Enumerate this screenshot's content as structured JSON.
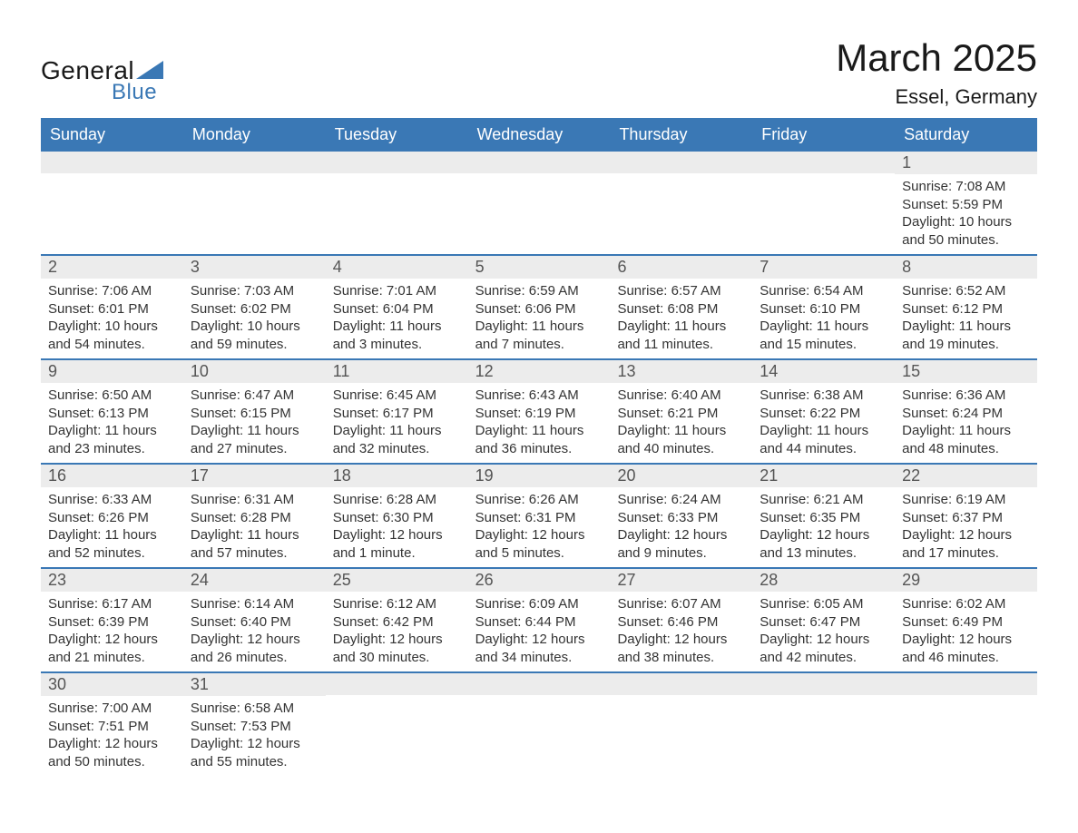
{
  "brand": {
    "text_general": "General",
    "text_blue": "Blue",
    "triangle_color": "#3a78b5"
  },
  "header": {
    "month_title": "March 2025",
    "location": "Essel, Germany"
  },
  "calendar": {
    "type": "calendar",
    "header_bg": "#3a78b5",
    "header_fg": "#ffffff",
    "daynum_bg": "#ececec",
    "row_border_color": "#3a78b5",
    "text_color": "#333333",
    "day_labels": [
      "Sunday",
      "Monday",
      "Tuesday",
      "Wednesday",
      "Thursday",
      "Friday",
      "Saturday"
    ],
    "weeks": [
      [
        {
          "day": "",
          "sunrise": "",
          "sunset": "",
          "daylight": ""
        },
        {
          "day": "",
          "sunrise": "",
          "sunset": "",
          "daylight": ""
        },
        {
          "day": "",
          "sunrise": "",
          "sunset": "",
          "daylight": ""
        },
        {
          "day": "",
          "sunrise": "",
          "sunset": "",
          "daylight": ""
        },
        {
          "day": "",
          "sunrise": "",
          "sunset": "",
          "daylight": ""
        },
        {
          "day": "",
          "sunrise": "",
          "sunset": "",
          "daylight": ""
        },
        {
          "day": "1",
          "sunrise": "Sunrise: 7:08 AM",
          "sunset": "Sunset: 5:59 PM",
          "daylight": "Daylight: 10 hours and 50 minutes."
        }
      ],
      [
        {
          "day": "2",
          "sunrise": "Sunrise: 7:06 AM",
          "sunset": "Sunset: 6:01 PM",
          "daylight": "Daylight: 10 hours and 54 minutes."
        },
        {
          "day": "3",
          "sunrise": "Sunrise: 7:03 AM",
          "sunset": "Sunset: 6:02 PM",
          "daylight": "Daylight: 10 hours and 59 minutes."
        },
        {
          "day": "4",
          "sunrise": "Sunrise: 7:01 AM",
          "sunset": "Sunset: 6:04 PM",
          "daylight": "Daylight: 11 hours and 3 minutes."
        },
        {
          "day": "5",
          "sunrise": "Sunrise: 6:59 AM",
          "sunset": "Sunset: 6:06 PM",
          "daylight": "Daylight: 11 hours and 7 minutes."
        },
        {
          "day": "6",
          "sunrise": "Sunrise: 6:57 AM",
          "sunset": "Sunset: 6:08 PM",
          "daylight": "Daylight: 11 hours and 11 minutes."
        },
        {
          "day": "7",
          "sunrise": "Sunrise: 6:54 AM",
          "sunset": "Sunset: 6:10 PM",
          "daylight": "Daylight: 11 hours and 15 minutes."
        },
        {
          "day": "8",
          "sunrise": "Sunrise: 6:52 AM",
          "sunset": "Sunset: 6:12 PM",
          "daylight": "Daylight: 11 hours and 19 minutes."
        }
      ],
      [
        {
          "day": "9",
          "sunrise": "Sunrise: 6:50 AM",
          "sunset": "Sunset: 6:13 PM",
          "daylight": "Daylight: 11 hours and 23 minutes."
        },
        {
          "day": "10",
          "sunrise": "Sunrise: 6:47 AM",
          "sunset": "Sunset: 6:15 PM",
          "daylight": "Daylight: 11 hours and 27 minutes."
        },
        {
          "day": "11",
          "sunrise": "Sunrise: 6:45 AM",
          "sunset": "Sunset: 6:17 PM",
          "daylight": "Daylight: 11 hours and 32 minutes."
        },
        {
          "day": "12",
          "sunrise": "Sunrise: 6:43 AM",
          "sunset": "Sunset: 6:19 PM",
          "daylight": "Daylight: 11 hours and 36 minutes."
        },
        {
          "day": "13",
          "sunrise": "Sunrise: 6:40 AM",
          "sunset": "Sunset: 6:21 PM",
          "daylight": "Daylight: 11 hours and 40 minutes."
        },
        {
          "day": "14",
          "sunrise": "Sunrise: 6:38 AM",
          "sunset": "Sunset: 6:22 PM",
          "daylight": "Daylight: 11 hours and 44 minutes."
        },
        {
          "day": "15",
          "sunrise": "Sunrise: 6:36 AM",
          "sunset": "Sunset: 6:24 PM",
          "daylight": "Daylight: 11 hours and 48 minutes."
        }
      ],
      [
        {
          "day": "16",
          "sunrise": "Sunrise: 6:33 AM",
          "sunset": "Sunset: 6:26 PM",
          "daylight": "Daylight: 11 hours and 52 minutes."
        },
        {
          "day": "17",
          "sunrise": "Sunrise: 6:31 AM",
          "sunset": "Sunset: 6:28 PM",
          "daylight": "Daylight: 11 hours and 57 minutes."
        },
        {
          "day": "18",
          "sunrise": "Sunrise: 6:28 AM",
          "sunset": "Sunset: 6:30 PM",
          "daylight": "Daylight: 12 hours and 1 minute."
        },
        {
          "day": "19",
          "sunrise": "Sunrise: 6:26 AM",
          "sunset": "Sunset: 6:31 PM",
          "daylight": "Daylight: 12 hours and 5 minutes."
        },
        {
          "day": "20",
          "sunrise": "Sunrise: 6:24 AM",
          "sunset": "Sunset: 6:33 PM",
          "daylight": "Daylight: 12 hours and 9 minutes."
        },
        {
          "day": "21",
          "sunrise": "Sunrise: 6:21 AM",
          "sunset": "Sunset: 6:35 PM",
          "daylight": "Daylight: 12 hours and 13 minutes."
        },
        {
          "day": "22",
          "sunrise": "Sunrise: 6:19 AM",
          "sunset": "Sunset: 6:37 PM",
          "daylight": "Daylight: 12 hours and 17 minutes."
        }
      ],
      [
        {
          "day": "23",
          "sunrise": "Sunrise: 6:17 AM",
          "sunset": "Sunset: 6:39 PM",
          "daylight": "Daylight: 12 hours and 21 minutes."
        },
        {
          "day": "24",
          "sunrise": "Sunrise: 6:14 AM",
          "sunset": "Sunset: 6:40 PM",
          "daylight": "Daylight: 12 hours and 26 minutes."
        },
        {
          "day": "25",
          "sunrise": "Sunrise: 6:12 AM",
          "sunset": "Sunset: 6:42 PM",
          "daylight": "Daylight: 12 hours and 30 minutes."
        },
        {
          "day": "26",
          "sunrise": "Sunrise: 6:09 AM",
          "sunset": "Sunset: 6:44 PM",
          "daylight": "Daylight: 12 hours and 34 minutes."
        },
        {
          "day": "27",
          "sunrise": "Sunrise: 6:07 AM",
          "sunset": "Sunset: 6:46 PM",
          "daylight": "Daylight: 12 hours and 38 minutes."
        },
        {
          "day": "28",
          "sunrise": "Sunrise: 6:05 AM",
          "sunset": "Sunset: 6:47 PM",
          "daylight": "Daylight: 12 hours and 42 minutes."
        },
        {
          "day": "29",
          "sunrise": "Sunrise: 6:02 AM",
          "sunset": "Sunset: 6:49 PM",
          "daylight": "Daylight: 12 hours and 46 minutes."
        }
      ],
      [
        {
          "day": "30",
          "sunrise": "Sunrise: 7:00 AM",
          "sunset": "Sunset: 7:51 PM",
          "daylight": "Daylight: 12 hours and 50 minutes."
        },
        {
          "day": "31",
          "sunrise": "Sunrise: 6:58 AM",
          "sunset": "Sunset: 7:53 PM",
          "daylight": "Daylight: 12 hours and 55 minutes."
        },
        {
          "day": "",
          "sunrise": "",
          "sunset": "",
          "daylight": ""
        },
        {
          "day": "",
          "sunrise": "",
          "sunset": "",
          "daylight": ""
        },
        {
          "day": "",
          "sunrise": "",
          "sunset": "",
          "daylight": ""
        },
        {
          "day": "",
          "sunrise": "",
          "sunset": "",
          "daylight": ""
        },
        {
          "day": "",
          "sunrise": "",
          "sunset": "",
          "daylight": ""
        }
      ]
    ]
  }
}
